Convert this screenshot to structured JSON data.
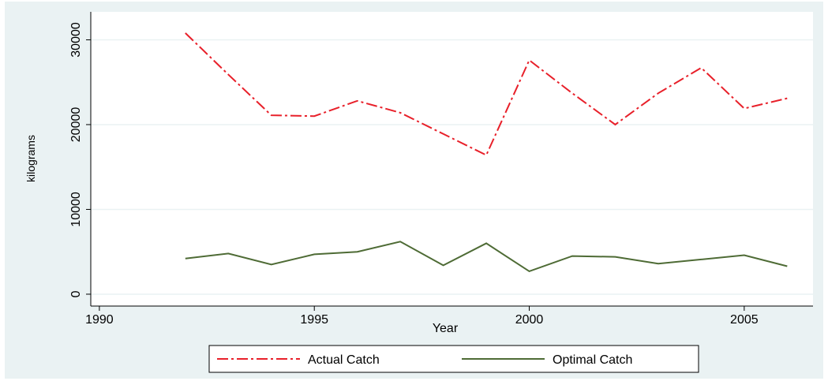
{
  "chart_data": {
    "type": "line",
    "x_label": "Year",
    "y_label": "kilograms",
    "x": [
      1992,
      1993,
      1994,
      1995,
      1996,
      1997,
      1998,
      1999,
      2000,
      2001,
      2002,
      2003,
      2004,
      2005,
      2006
    ],
    "series": [
      {
        "name": "Actual Catch",
        "color": "#e8202a",
        "dash": "dash-dot",
        "values": [
          30800,
          25900,
          21100,
          21000,
          22800,
          21400,
          18900,
          16400,
          27600,
          23700,
          20000,
          23700,
          26700,
          21900,
          23100
        ]
      },
      {
        "name": "Optimal Catch",
        "color": "#4e6b35",
        "dash": "solid",
        "values": [
          4200,
          4800,
          3500,
          4700,
          5000,
          6200,
          3400,
          6000,
          2700,
          4500,
          4400,
          3600,
          4100,
          4600,
          3300
        ]
      }
    ],
    "xlim": [
      1989.8,
      2006.6
    ],
    "xticks": [
      1990,
      1995,
      2000,
      2005
    ],
    "ylim": [
      -1400,
      33300
    ],
    "yticks": [
      0,
      10000,
      20000,
      30000
    ],
    "grid": true,
    "legend": "bottom"
  }
}
